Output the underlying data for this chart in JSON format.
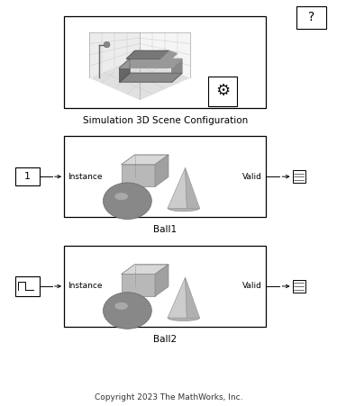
{
  "bg_color": "#ffffff",
  "fig_width": 3.74,
  "fig_height": 4.51,
  "title_text": "Simulation 3D Scene Configuration",
  "ball1_text": "Ball1",
  "ball2_text": "Ball2",
  "copyright_text": "Copyright 2023 The MathWorks, Inc.",
  "instance_label": "Instance",
  "valid_label": "Valid",
  "gear_color": "#111111",
  "font_size_label": 7.5,
  "font_size_port": 6.5,
  "font_size_copyright": 6.5,
  "font_size_question": 10,
  "scene_block": [
    0.19,
    0.735,
    0.6,
    0.225
  ],
  "ball1_block": [
    0.19,
    0.465,
    0.6,
    0.2
  ],
  "ball2_block": [
    0.19,
    0.195,
    0.6,
    0.2
  ],
  "q_block": [
    0.88,
    0.93,
    0.088,
    0.055
  ],
  "shape_box_top": "#d8d8d8",
  "shape_box_front": "#b8b8b8",
  "shape_box_side": "#a0a0a0",
  "shape_ball_dark": "#888888",
  "shape_ball_light": "#c0c0c0",
  "shape_cone_main": "#cccccc",
  "shape_cone_side": "#b0b0b0",
  "car_body": "#888888",
  "car_roof": "#777777",
  "car_dark": "#666666",
  "room_floor": "#e0e0e0",
  "room_wall_left": "#ececec",
  "room_wall_right": "#f5f5f5",
  "room_grid": "#cccccc"
}
